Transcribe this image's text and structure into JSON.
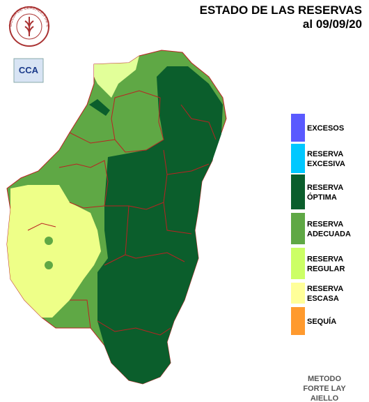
{
  "header": {
    "title": "ESTADO DE LAS RESERVAS",
    "date": "al 09/09/20"
  },
  "logos": {
    "bolsa": "BOLSA DE CEREALES DE ENTRE RIOS",
    "cca": "CCA"
  },
  "legend": {
    "items": [
      {
        "lines": [
          "EXCESOS"
        ],
        "color": "#5a5aff"
      },
      {
        "lines": [
          "RESERVA",
          "EXCESIVA"
        ],
        "color": "#00c8ff"
      },
      {
        "lines": [
          "RESERVA",
          "ÓPTIMA"
        ],
        "color": "#0b5e2c"
      },
      {
        "lines": [
          "RESERVA",
          "ADECUADA"
        ],
        "color": "#5fa845"
      },
      {
        "lines": [
          "RESERVA",
          "REGULAR"
        ],
        "color": "#ccff66"
      },
      {
        "lines": [
          "RESERVA",
          "ESCASA"
        ],
        "color": "#ffff99"
      },
      {
        "lines": [
          "SEQUÍA"
        ],
        "color": "#ff9a2e"
      }
    ]
  },
  "method": [
    "METODO",
    "FORTE LAY",
    "AIELLO"
  ]
}
